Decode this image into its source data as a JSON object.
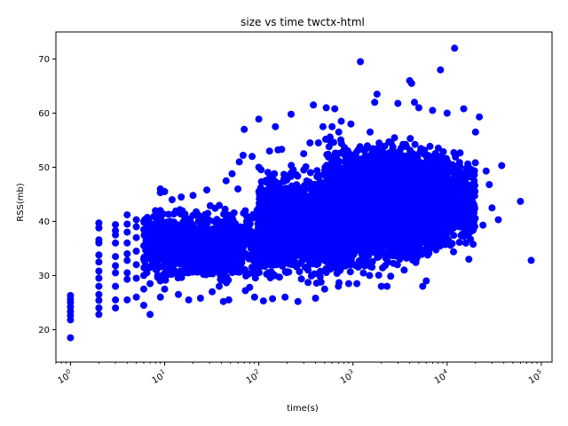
{
  "chart_data": {
    "type": "scatter",
    "title": "size vs time twctx-html",
    "xlabel": "time(s)",
    "ylabel": "RSS(mb)",
    "xscale": "log",
    "xlim": [
      0.7,
      130000
    ],
    "ylim": [
      14,
      75
    ],
    "x_ticks": [
      {
        "value": 1,
        "base": "10",
        "exp": "0"
      },
      {
        "value": 10,
        "base": "10",
        "exp": "1"
      },
      {
        "value": 100,
        "base": "10",
        "exp": "2"
      },
      {
        "value": 1000,
        "base": "10",
        "exp": "3"
      },
      {
        "value": 10000,
        "base": "10",
        "exp": "4"
      },
      {
        "value": 100000,
        "base": "10",
        "exp": "5"
      }
    ],
    "y_ticks": [
      20,
      30,
      40,
      50,
      60,
      70
    ],
    "marker_color": "#0000ff",
    "grid": false,
    "legend": "none",
    "series": [
      {
        "points": [
          [
            1,
            18.5
          ],
          [
            1,
            21.8
          ],
          [
            1,
            22.6
          ],
          [
            1,
            23.4
          ],
          [
            1,
            24.2
          ],
          [
            1,
            25.0
          ],
          [
            1,
            25.6
          ],
          [
            1,
            26.3
          ],
          [
            2,
            22.8
          ],
          [
            2,
            24.0
          ],
          [
            2,
            25.4
          ],
          [
            2,
            26.5
          ],
          [
            2,
            28.0
          ],
          [
            2,
            29.5
          ],
          [
            2,
            30.8
          ],
          [
            2,
            32.5
          ],
          [
            2,
            33.8
          ],
          [
            2,
            36.0
          ],
          [
            2,
            36.6
          ],
          [
            2,
            38.8
          ],
          [
            2,
            39.7
          ],
          [
            3,
            24.0
          ],
          [
            3,
            25.5
          ],
          [
            3,
            28.0
          ],
          [
            3,
            30.5
          ],
          [
            3,
            31.8
          ],
          [
            3,
            33.5
          ],
          [
            3,
            36.0
          ],
          [
            3,
            37.5
          ],
          [
            3,
            38.3
          ],
          [
            3,
            39.4
          ],
          [
            4,
            25.5
          ],
          [
            4,
            29.3
          ],
          [
            4,
            30.5
          ],
          [
            4,
            32.8
          ],
          [
            4,
            34.0
          ],
          [
            4,
            36.0
          ],
          [
            4,
            38.0
          ],
          [
            4,
            39.5
          ],
          [
            4,
            41.2
          ],
          [
            5,
            26.0
          ],
          [
            5,
            29.5
          ],
          [
            5,
            32.0
          ],
          [
            5,
            34.5
          ],
          [
            5,
            37.0
          ],
          [
            5,
            39.0
          ],
          [
            5,
            40.3
          ],
          [
            6,
            24.5
          ],
          [
            6,
            27.5
          ],
          [
            6,
            30.0
          ],
          [
            6,
            33.0
          ],
          [
            6,
            35.5
          ],
          [
            6,
            38.5
          ],
          [
            6,
            40.0
          ],
          [
            7,
            22.8
          ],
          [
            7,
            28.5
          ],
          [
            7,
            31.5
          ],
          [
            7,
            34.0
          ],
          [
            7,
            36.5
          ],
          [
            7,
            38.5
          ],
          [
            9,
            26.0
          ],
          [
            9,
            29.0
          ],
          [
            9,
            33.0
          ],
          [
            9,
            36.0
          ],
          [
            9,
            39.0
          ],
          [
            9,
            42.0
          ],
          [
            9,
            45.3
          ],
          [
            9,
            46.0
          ],
          [
            10,
            27.5
          ],
          [
            10,
            45.5
          ],
          [
            12,
            44.0
          ],
          [
            14,
            26.5
          ],
          [
            15,
            44.5
          ],
          [
            18,
            25.5
          ],
          [
            20,
            44.8
          ],
          [
            24,
            25.8
          ],
          [
            28,
            45.8
          ],
          [
            32,
            27.0
          ],
          [
            38,
            28.0
          ],
          [
            42,
            25.2
          ],
          [
            45,
            47.5
          ],
          [
            48,
            25.5
          ],
          [
            52,
            48.8
          ],
          [
            60,
            46.0
          ],
          [
            62,
            51.0
          ],
          [
            68,
            52.2
          ],
          [
            70,
            57.0
          ],
          [
            72,
            27.2
          ],
          [
            80,
            27.8
          ],
          [
            85,
            52.0
          ],
          [
            90,
            26.0
          ],
          [
            100,
            58.9
          ],
          [
            100,
            50.0
          ],
          [
            112,
            25.3
          ],
          [
            130,
            53.0
          ],
          [
            140,
            25.7
          ],
          [
            150,
            57.5
          ],
          [
            160,
            53.2
          ],
          [
            175,
            53.3
          ],
          [
            190,
            26.0
          ],
          [
            220,
            59.8
          ],
          [
            260,
            25.2
          ],
          [
            300,
            52.5
          ],
          [
            350,
            54.5
          ],
          [
            380,
            61.5
          ],
          [
            400,
            25.8
          ],
          [
            430,
            54.5
          ],
          [
            480,
            57.5
          ],
          [
            500,
            27.5
          ],
          [
            520,
            61.0
          ],
          [
            600,
            57.5
          ],
          [
            640,
            60.8
          ],
          [
            700,
            28.0
          ],
          [
            750,
            58.5
          ],
          [
            900,
            28.5
          ],
          [
            950,
            58.0
          ],
          [
            1100,
            28.5
          ],
          [
            1200,
            69.5
          ],
          [
            1500,
            30.0
          ],
          [
            1700,
            62.0
          ],
          [
            1800,
            63.5
          ],
          [
            2000,
            28.0
          ],
          [
            2300,
            28.0
          ],
          [
            3000,
            61.8
          ],
          [
            3500,
            31.0
          ],
          [
            4000,
            66.0
          ],
          [
            4200,
            65.5
          ],
          [
            4500,
            62.0
          ],
          [
            5000,
            61.0
          ],
          [
            5500,
            28.0
          ],
          [
            6000,
            29.0
          ],
          [
            7000,
            60.5
          ],
          [
            8500,
            68.0
          ],
          [
            10000,
            60.0
          ],
          [
            12000,
            72.0
          ],
          [
            15000,
            60.8
          ],
          [
            17000,
            33.0
          ],
          [
            20000,
            56.5
          ],
          [
            22000,
            59.3
          ],
          [
            24000,
            39.3
          ],
          [
            26000,
            49.3
          ],
          [
            28000,
            46.8
          ],
          [
            30000,
            42.5
          ],
          [
            35000,
            40.3
          ],
          [
            38000,
            50.3
          ],
          [
            60000,
            43.7
          ],
          [
            78000,
            32.8
          ]
        ],
        "clusters": [
          {
            "x": [
              6,
              200
            ],
            "y": [
              28,
              44
            ],
            "count": 900
          },
          {
            "x": [
              8,
              60
            ],
            "y": [
              27,
              42
            ],
            "count": 400
          },
          {
            "x": [
              100,
              1000
            ],
            "y": [
              27,
              52
            ],
            "count": 1500
          },
          {
            "x": [
              500,
              5000
            ],
            "y": [
              29,
              57
            ],
            "count": 2000
          },
          {
            "x": [
              1000,
              10000
            ],
            "y": [
              31,
              56
            ],
            "count": 1800
          },
          {
            "x": [
              5000,
              20000
            ],
            "y": [
              33,
              55
            ],
            "count": 600
          }
        ]
      }
    ]
  }
}
